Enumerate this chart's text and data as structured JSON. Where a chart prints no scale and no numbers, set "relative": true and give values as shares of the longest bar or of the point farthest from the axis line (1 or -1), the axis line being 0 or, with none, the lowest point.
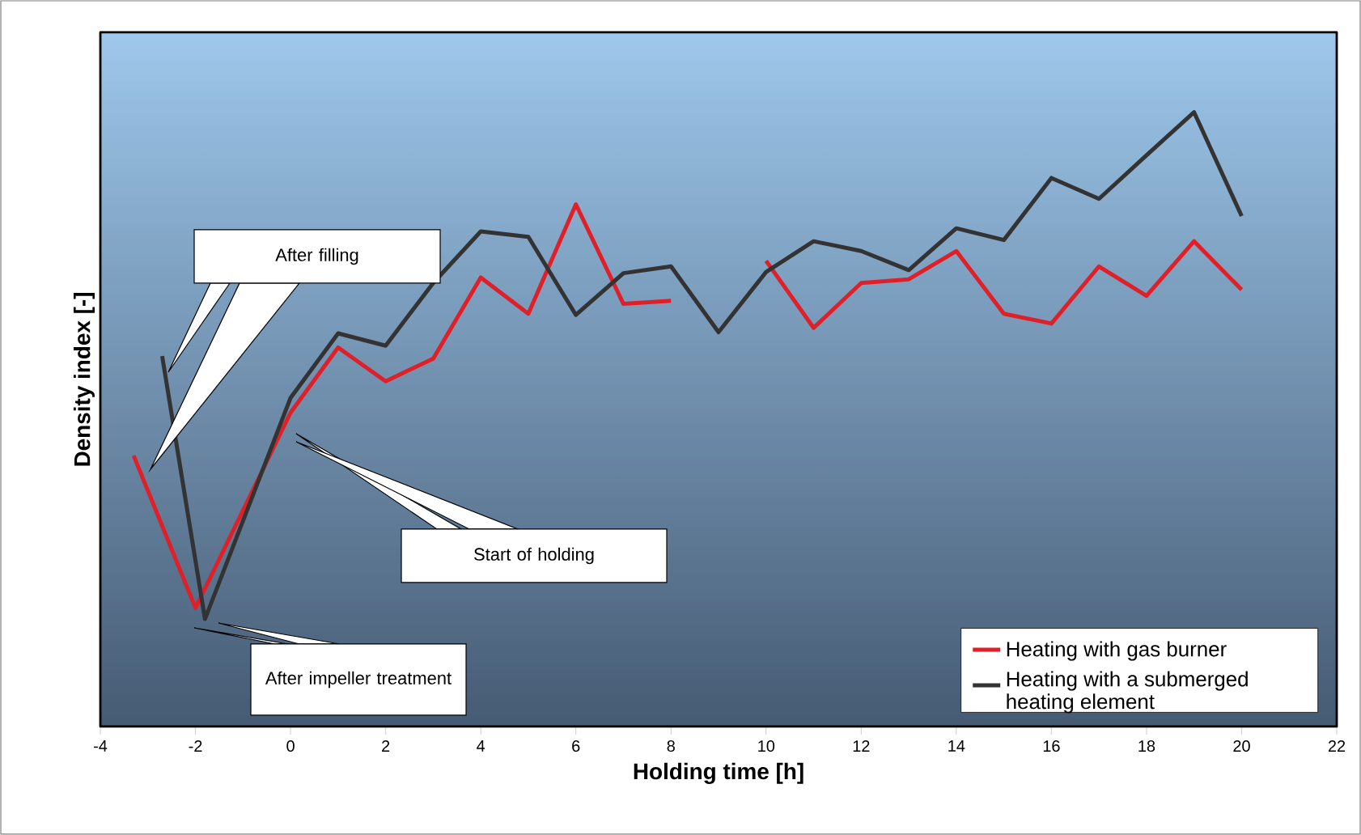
{
  "chart_data": {
    "type": "line",
    "relative": true,
    "xlabel": "Holding time [h]",
    "ylabel": "Density index [-]",
    "xlim": [
      -4,
      22
    ],
    "xticks": [
      -4,
      -2,
      0,
      2,
      4,
      6,
      8,
      10,
      12,
      14,
      16,
      18,
      20,
      22
    ],
    "legend": "bottom right",
    "line_style": "solid",
    "marker": "none",
    "grid": false,
    "series": [
      {
        "name": "Heating with gas burner",
        "color": "#e02028",
        "x": [
          -3.3,
          -2,
          0,
          1,
          2,
          3,
          4,
          5,
          6,
          7,
          8,
          9,
          10,
          11,
          12,
          13,
          14,
          15,
          16,
          17,
          18,
          19,
          20
        ],
        "values": [
          0.441,
          0.193,
          0.511,
          0.617,
          0.562,
          0.599,
          0.731,
          0.672,
          0.85,
          0.688,
          0.693,
          null,
          0.758,
          0.649,
          0.722,
          0.728,
          0.774,
          0.672,
          0.656,
          0.749,
          0.701,
          0.79,
          0.711
        ]
      },
      {
        "name": "Heating with a submerged heating element",
        "color": "#333333",
        "x": [
          -2.7,
          -1.8,
          0,
          1,
          2,
          3,
          4,
          5,
          6,
          7,
          8,
          9,
          10,
          11,
          12,
          13,
          14,
          15,
          16,
          17,
          18,
          19,
          20
        ],
        "values": [
          0.603,
          0.175,
          0.535,
          0.64,
          0.62,
          0.722,
          0.806,
          0.797,
          0.67,
          0.738,
          0.749,
          0.642,
          0.74,
          0.79,
          0.774,
          0.743,
          0.811,
          0.792,
          0.893,
          0.859,
          0.93,
          1,
          0.831
        ]
      }
    ],
    "annotations": [
      "After filling",
      "Start of holding",
      "After impeller treatment"
    ]
  }
}
